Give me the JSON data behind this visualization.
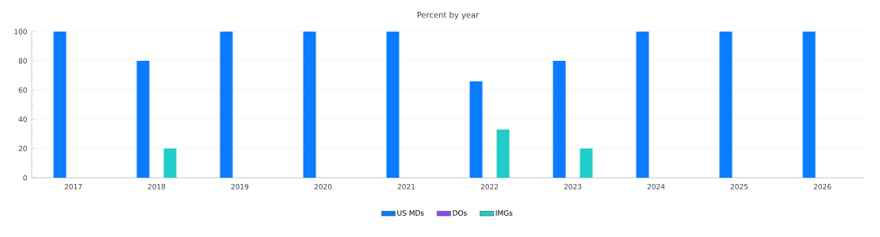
{
  "chart_data": {
    "type": "bar",
    "title": "Percent by year",
    "categories": [
      "2017",
      "2018",
      "2019",
      "2020",
      "2021",
      "2022",
      "2023",
      "2024",
      "2025",
      "2026"
    ],
    "series": [
      {
        "name": "US MDs",
        "color": "#0a7cff",
        "values": [
          100,
          80,
          100,
          100,
          100,
          66,
          80,
          100,
          100,
          100
        ]
      },
      {
        "name": "DOs",
        "color": "#8a4cf0",
        "values": [
          0,
          0,
          0,
          0,
          0,
          0,
          0,
          0,
          0,
          0
        ]
      },
      {
        "name": "IMGs",
        "color": "#22ccc8",
        "values": [
          0,
          20,
          0,
          0,
          0,
          33,
          20,
          0,
          0,
          0
        ]
      }
    ],
    "ylim": [
      0,
      100
    ],
    "yticks": [
      0,
      20,
      40,
      60,
      80,
      100
    ],
    "grid": "y",
    "legend": "bottom"
  }
}
